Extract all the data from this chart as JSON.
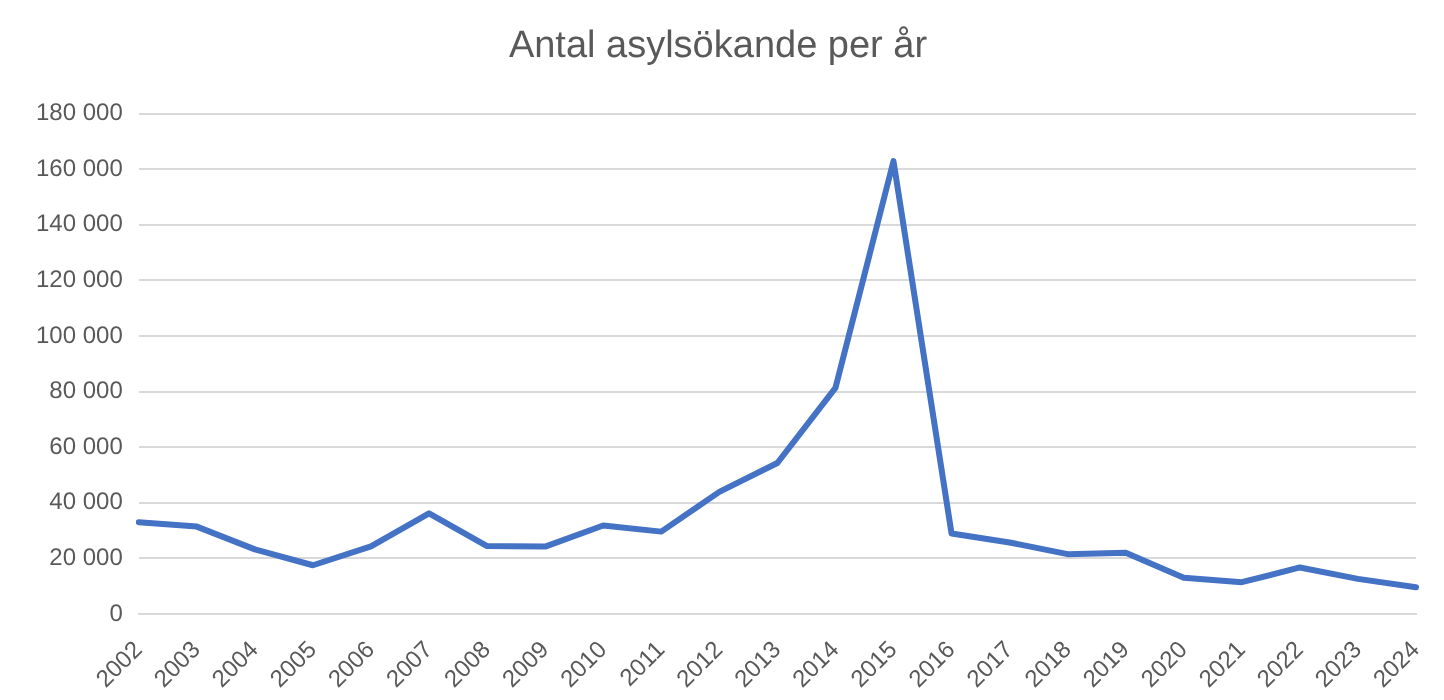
{
  "chart_data": {
    "type": "line",
    "title": "Antal asylsökande per år",
    "categories": [
      "2002",
      "2003",
      "2004",
      "2005",
      "2006",
      "2007",
      "2008",
      "2009",
      "2010",
      "2011",
      "2012",
      "2013",
      "2014",
      "2015",
      "2016",
      "2017",
      "2018",
      "2019",
      "2020",
      "2021",
      "2022",
      "2023",
      "2024"
    ],
    "series": [
      {
        "color": "#4472c4",
        "values": [
          33000,
          31400,
          23200,
          17500,
          24300,
          36200,
          24400,
          24200,
          31800,
          29600,
          43900,
          54300,
          81300,
          162900,
          28900,
          25700,
          21500,
          22000,
          13000,
          11400,
          16700,
          12600,
          9600
        ]
      }
    ],
    "ylim": [
      0,
      180000
    ],
    "yticks": [
      {
        "value": 0,
        "label": "0"
      },
      {
        "value": 20000,
        "label": "20 000"
      },
      {
        "value": 40000,
        "label": "40 000"
      },
      {
        "value": 60000,
        "label": "60 000"
      },
      {
        "value": 80000,
        "label": "80 000"
      },
      {
        "value": 100000,
        "label": "100 000"
      },
      {
        "value": 120000,
        "label": "120 000"
      },
      {
        "value": 140000,
        "label": "140 000"
      },
      {
        "value": 160000,
        "label": "160 000"
      },
      {
        "value": 180000,
        "label": "180 000"
      }
    ],
    "grid": "y",
    "legend": false,
    "marker": "none",
    "line_style": "solid"
  }
}
